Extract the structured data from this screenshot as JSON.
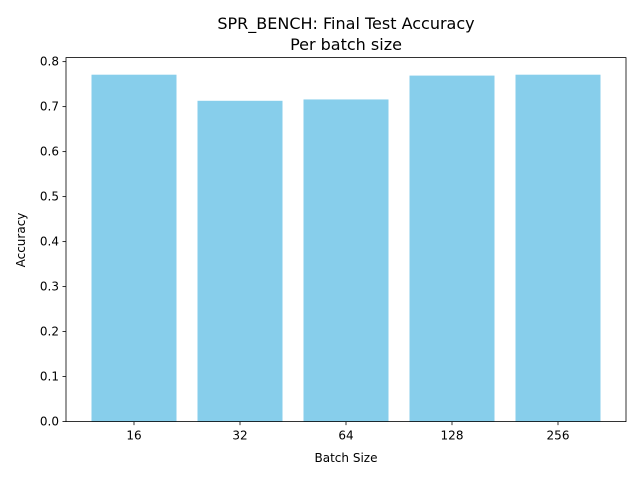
{
  "chart_data": {
    "type": "bar",
    "title": "SPR_BENCH: Final Test Accuracy",
    "subtitle": "Per batch size",
    "xlabel": "Batch Size",
    "ylabel": "Accuracy",
    "categories": [
      "16",
      "32",
      "64",
      "128",
      "256"
    ],
    "values": [
      0.771,
      0.713,
      0.716,
      0.769,
      0.771
    ],
    "ylim": [
      0,
      0.8
    ],
    "yticks": [
      "0.0",
      "0.1",
      "0.2",
      "0.3",
      "0.4",
      "0.5",
      "0.6",
      "0.7",
      "0.8"
    ],
    "grid": false,
    "bar_color": "#87ceeb"
  }
}
